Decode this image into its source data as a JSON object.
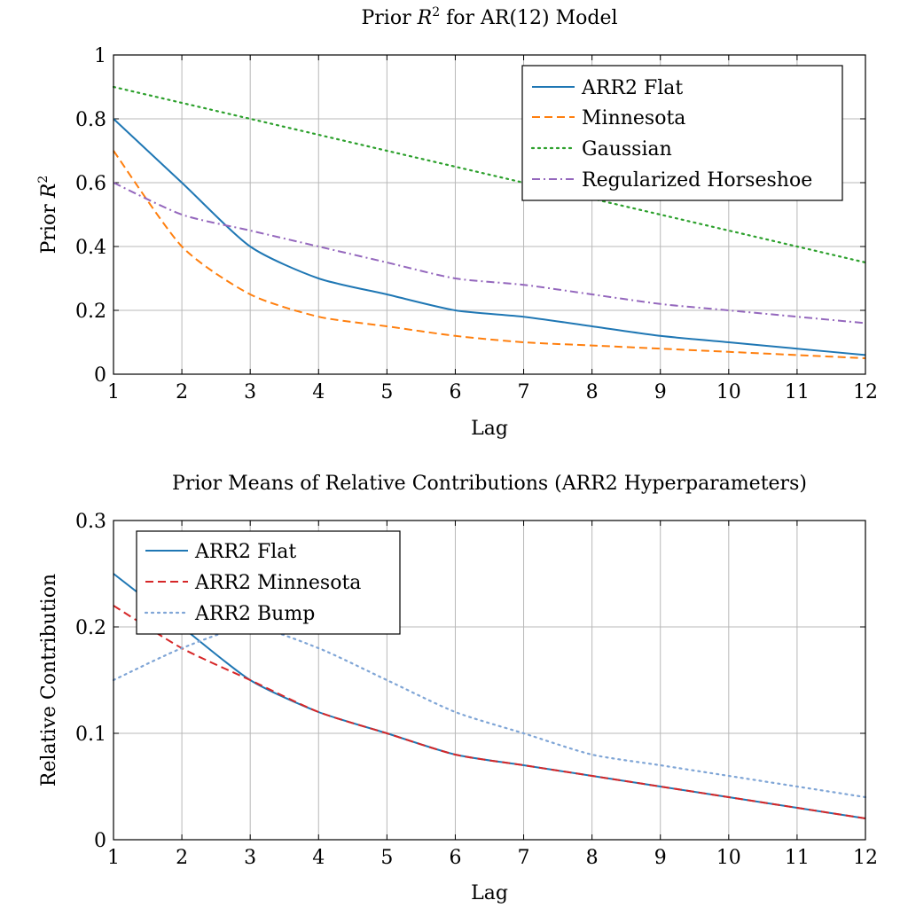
{
  "chart_data": [
    {
      "type": "line",
      "title_prefix": "Prior ",
      "title_math": "R",
      "title_sup": "2",
      "title_suffix": " for AR(12) Model",
      "xlabel": "Lag",
      "ylabel_prefix": "Prior ",
      "ylabel_math": "R",
      "ylabel_sup": "2",
      "xlim": [
        1,
        12
      ],
      "ylim": [
        0,
        1
      ],
      "xticks": [
        1,
        2,
        3,
        4,
        5,
        6,
        7,
        8,
        9,
        10,
        11,
        12
      ],
      "yticks": [
        0,
        0.2,
        0.4,
        0.6,
        0.8,
        1
      ],
      "ytick_labels": [
        "0",
        "0.2",
        "0.4",
        "0.6",
        "0.8",
        "1"
      ],
      "grid": true,
      "legend_position": "top-right",
      "x": [
        1,
        2,
        3,
        4,
        5,
        6,
        7,
        8,
        9,
        10,
        11,
        12
      ],
      "series": [
        {
          "name": "ARR2 Flat",
          "color": "#1f77b4",
          "style": "solid",
          "values": [
            0.8,
            0.6,
            0.4,
            0.3,
            0.25,
            0.2,
            0.18,
            0.15,
            0.12,
            0.1,
            0.08,
            0.06
          ]
        },
        {
          "name": "Minnesota",
          "color": "#ff7f0e",
          "style": "dashed",
          "values": [
            0.7,
            0.4,
            0.25,
            0.18,
            0.15,
            0.12,
            0.1,
            0.09,
            0.08,
            0.07,
            0.06,
            0.05
          ]
        },
        {
          "name": "Gaussian",
          "color": "#2ca02c",
          "style": "dotted",
          "values": [
            0.9,
            0.85,
            0.8,
            0.75,
            0.7,
            0.65,
            0.6,
            0.55,
            0.5,
            0.45,
            0.4,
            0.35
          ]
        },
        {
          "name": "Regularized Horseshoe",
          "color": "#9467bd",
          "style": "dashdot",
          "values": [
            0.6,
            0.5,
            0.45,
            0.4,
            0.35,
            0.3,
            0.28,
            0.25,
            0.22,
            0.2,
            0.18,
            0.16
          ]
        }
      ]
    },
    {
      "type": "line",
      "title": "Prior Means of Relative Contributions (ARR2 Hyperparameters)",
      "xlabel": "Lag",
      "ylabel": "Relative Contribution",
      "xlim": [
        1,
        12
      ],
      "ylim": [
        0,
        0.3
      ],
      "xticks": [
        1,
        2,
        3,
        4,
        5,
        6,
        7,
        8,
        9,
        10,
        11,
        12
      ],
      "yticks": [
        0,
        0.1,
        0.2,
        0.3
      ],
      "ytick_labels": [
        "0",
        "0.1",
        "0.2",
        "0.3"
      ],
      "grid": true,
      "legend_position": "top-left",
      "x": [
        1,
        2,
        3,
        4,
        5,
        6,
        7,
        8,
        9,
        10,
        11,
        12
      ],
      "series": [
        {
          "name": "ARR2 Flat",
          "color": "#1f77b4",
          "style": "solid",
          "values": [
            0.25,
            0.2,
            0.15,
            0.12,
            0.1,
            0.08,
            0.07,
            0.06,
            0.05,
            0.04,
            0.03,
            0.02
          ]
        },
        {
          "name": "ARR2 Minnesota",
          "color": "#d62728",
          "style": "dashed",
          "values": [
            0.22,
            0.18,
            0.15,
            0.12,
            0.1,
            0.08,
            0.07,
            0.06,
            0.05,
            0.04,
            0.03,
            0.02
          ]
        },
        {
          "name": "ARR2 Bump",
          "color": "#7fa5d6",
          "style": "dotted",
          "values": [
            0.15,
            0.18,
            0.2,
            0.18,
            0.15,
            0.12,
            0.1,
            0.08,
            0.07,
            0.06,
            0.05,
            0.04
          ]
        }
      ]
    }
  ]
}
